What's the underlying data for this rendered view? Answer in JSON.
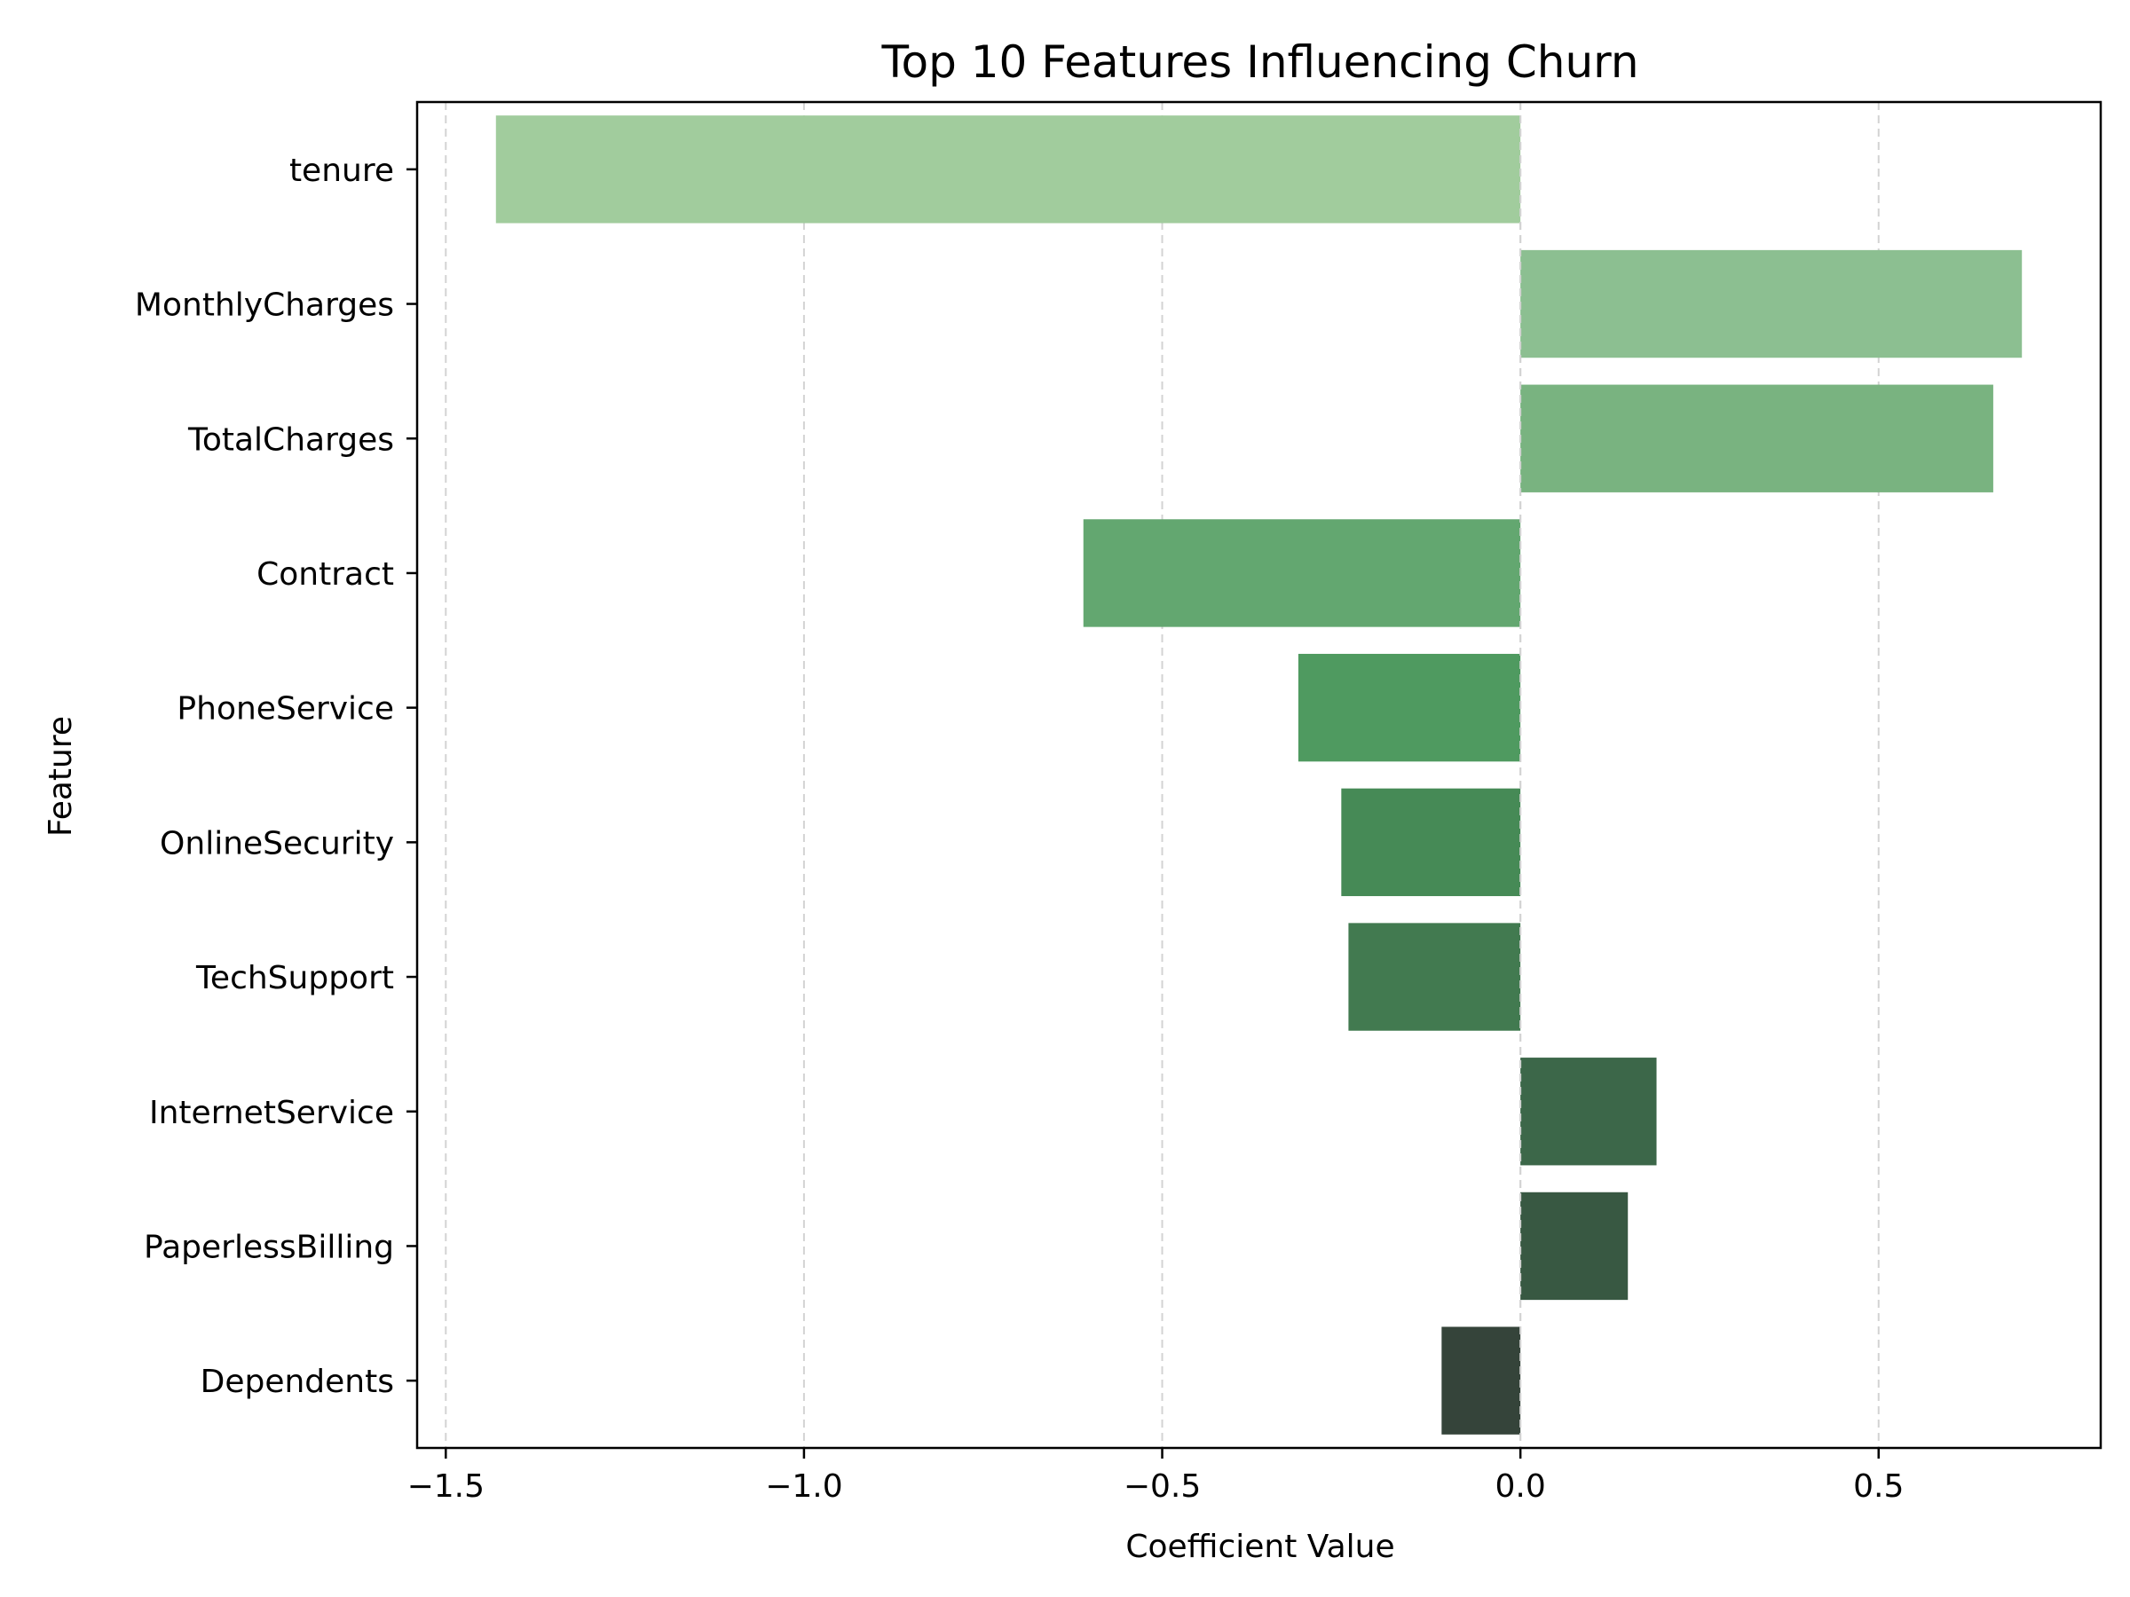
{
  "chart_data": {
    "type": "bar",
    "orientation": "horizontal",
    "title": "Top 10 Features Influencing Churn",
    "xlabel": "Coefficient Value",
    "ylabel": "Feature",
    "categories": [
      "tenure",
      "MonthlyCharges",
      "TotalCharges",
      "Contract",
      "PhoneService",
      "OnlineSecurity",
      "TechSupport",
      "InternetService",
      "PaperlessBilling",
      "Dependents"
    ],
    "values": [
      -1.43,
      0.7,
      0.66,
      -0.61,
      -0.31,
      -0.25,
      -0.24,
      0.19,
      0.15,
      -0.11
    ],
    "colors": [
      "#a1cc9d",
      "#8cbf91",
      "#79b380",
      "#63a770",
      "#4f9a60",
      "#468a56",
      "#427a50",
      "#3c6749",
      "#385842",
      "#35443a"
    ],
    "xlim": [
      -1.54,
      0.81
    ],
    "xticks": [
      -1.5,
      -1.0,
      -0.5,
      0.0,
      0.5
    ],
    "xtick_labels": [
      "−1.5",
      "−1.0",
      "−0.5",
      "0.0",
      "0.5"
    ],
    "grid": {
      "axis": "x",
      "style": "dashed",
      "color": "#d3d3d3"
    },
    "legend": null
  }
}
